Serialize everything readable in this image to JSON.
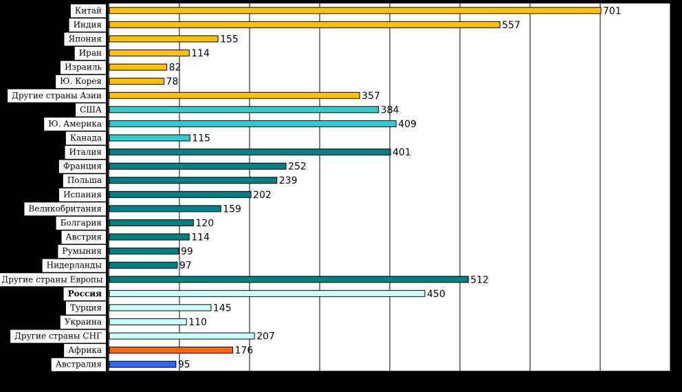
{
  "chart_data": {
    "type": "bar",
    "orientation": "horizontal",
    "title": "",
    "xlabel": "",
    "ylabel": "",
    "xlim": [
      0,
      800
    ],
    "grid": true,
    "legend": "none",
    "bold_categories": [
      "Россия"
    ],
    "categories": [
      "Китай",
      "Индия",
      "Япония",
      "Иран",
      "Израиль",
      "Ю. Корея",
      "Другие страны Азии",
      "США",
      "Ю. Америка",
      "Канада",
      "Италия",
      "Франция",
      "Польша",
      "Испания",
      "Великобритания",
      "Болгария",
      "Австрия",
      "Румыния",
      "Нидерланды",
      "Другие страны Европы",
      "Россия",
      "Турция",
      "Украина",
      "Другие страны СНГ",
      "Африка",
      "Австралия"
    ],
    "values": [
      701,
      557,
      155,
      114,
      82,
      78,
      357,
      384,
      409,
      115,
      401,
      252,
      239,
      202,
      159,
      120,
      114,
      99,
      97,
      512,
      450,
      145,
      110,
      207,
      176,
      95
    ],
    "colors": [
      "#FFC000",
      "#FFC000",
      "#FFC000",
      "#FFC000",
      "#FFC000",
      "#FFC000",
      "#FFC000",
      "#33CCCC",
      "#33CCCC",
      "#33CCCC",
      "#008080",
      "#008080",
      "#008080",
      "#008080",
      "#008080",
      "#008080",
      "#008080",
      "#008080",
      "#008080",
      "#008080",
      "#CCFFFF",
      "#CCFFFF",
      "#CCFFFF",
      "#CCFFFF",
      "#FF6600",
      "#3366FF"
    ]
  }
}
